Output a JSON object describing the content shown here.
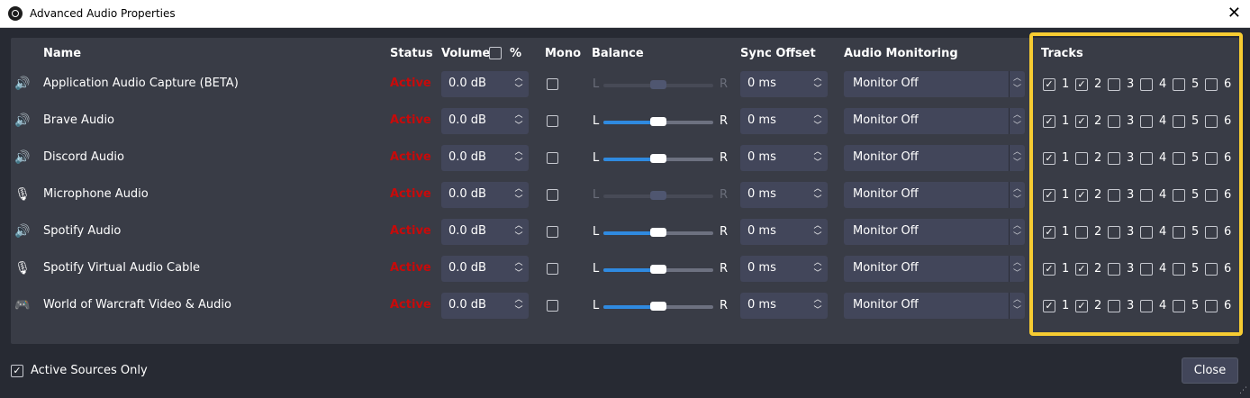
{
  "window": {
    "title": "Advanced Audio Properties"
  },
  "headers": {
    "name": "Name",
    "status": "Status",
    "volume": "Volume",
    "percent": "%",
    "mono": "Mono",
    "balance": "Balance",
    "sync": "Sync Offset",
    "monitoring": "Audio Monitoring",
    "tracks": "Tracks"
  },
  "balance_labels": {
    "left": "L",
    "right": "R"
  },
  "colors": {
    "status_active": "#c80a0a",
    "highlight": "#f7cc32",
    "accent": "#2f8ae0"
  },
  "sources": [
    {
      "icon": "speaker-icon",
      "name": "Application Audio Capture (BETA)",
      "status": "Active",
      "volume": "0.0 dB",
      "mono": false,
      "balance": 0.5,
      "balance_enabled": false,
      "sync": "0 ms",
      "monitoring": "Monitor Off",
      "tracks": [
        true,
        true,
        false,
        false,
        false,
        false
      ]
    },
    {
      "icon": "speaker-icon",
      "name": "Brave Audio",
      "status": "Active",
      "volume": "0.0 dB",
      "mono": false,
      "balance": 0.5,
      "balance_enabled": true,
      "sync": "0 ms",
      "monitoring": "Monitor Off",
      "tracks": [
        true,
        true,
        false,
        false,
        false,
        false
      ]
    },
    {
      "icon": "speaker-icon",
      "name": "Discord Audio",
      "status": "Active",
      "volume": "0.0 dB",
      "mono": false,
      "balance": 0.5,
      "balance_enabled": true,
      "sync": "0 ms",
      "monitoring": "Monitor Off",
      "tracks": [
        true,
        false,
        false,
        false,
        false,
        false
      ]
    },
    {
      "icon": "microphone-icon",
      "name": "Microphone Audio",
      "status": "Active",
      "volume": "0.0 dB",
      "mono": false,
      "balance": 0.5,
      "balance_enabled": false,
      "sync": "0 ms",
      "monitoring": "Monitor Off",
      "tracks": [
        true,
        true,
        false,
        false,
        false,
        false
      ]
    },
    {
      "icon": "speaker-icon",
      "name": "Spotify Audio",
      "status": "Active",
      "volume": "0.0 dB",
      "mono": false,
      "balance": 0.5,
      "balance_enabled": true,
      "sync": "0 ms",
      "monitoring": "Monitor Off",
      "tracks": [
        true,
        false,
        false,
        false,
        false,
        false
      ]
    },
    {
      "icon": "microphone-icon",
      "name": "Spotify Virtual Audio Cable",
      "status": "Active",
      "volume": "0.0 dB",
      "mono": false,
      "balance": 0.5,
      "balance_enabled": true,
      "sync": "0 ms",
      "monitoring": "Monitor Off",
      "tracks": [
        true,
        true,
        false,
        false,
        false,
        false
      ]
    },
    {
      "icon": "gamepad-icon",
      "name": "World of Warcraft Video & Audio",
      "status": "Active",
      "volume": "0.0 dB",
      "mono": false,
      "balance": 0.5,
      "balance_enabled": true,
      "sync": "0 ms",
      "monitoring": "Monitor Off",
      "tracks": [
        true,
        true,
        false,
        false,
        false,
        false
      ]
    }
  ],
  "track_numbers": [
    "1",
    "2",
    "3",
    "4",
    "5",
    "6"
  ],
  "footer": {
    "active_only_label": "Active Sources Only",
    "active_only_checked": true,
    "close_label": "Close"
  }
}
